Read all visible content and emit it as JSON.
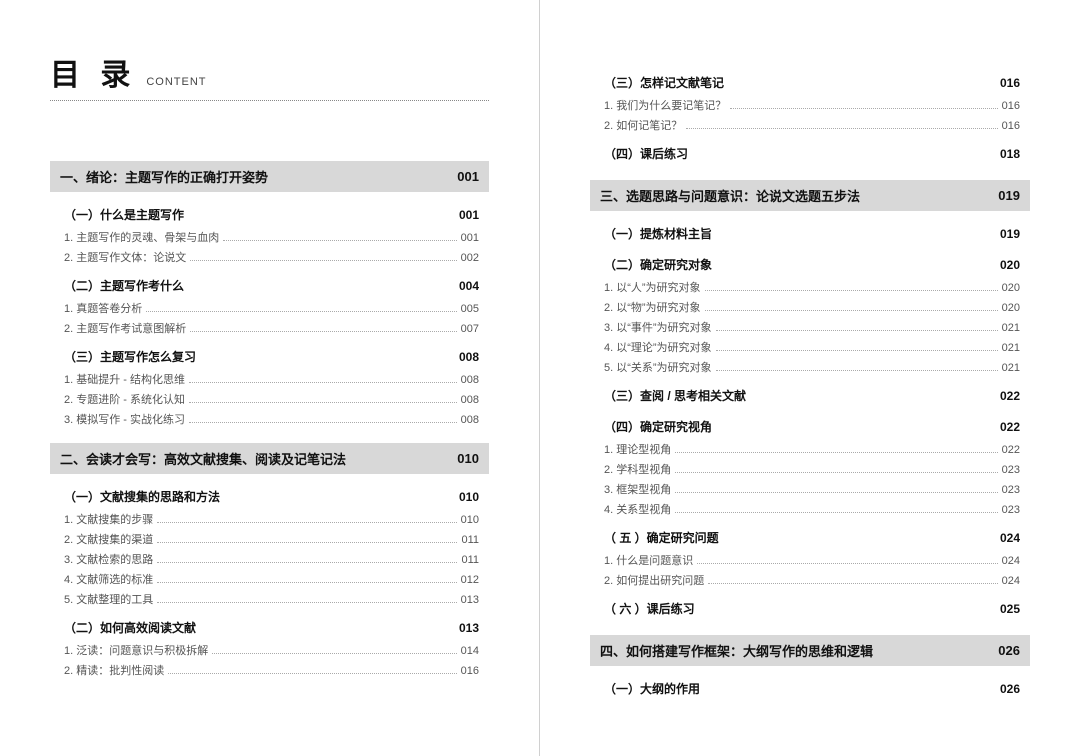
{
  "title": {
    "main": "目 录",
    "sub": "CONTENT"
  },
  "colors": {
    "chapter_bg": "#d8d8d8",
    "text_main": "#111111",
    "text_sub": "#555555",
    "dot": "#aaaaaa",
    "divider": "#d0d0d0"
  },
  "left": [
    {
      "type": "chapter",
      "label": "一、绪论：主题写作的正确打开姿势",
      "page": "001"
    },
    {
      "type": "section",
      "label": "（一）什么是主题写作",
      "page": "001"
    },
    {
      "type": "item",
      "label": "1. 主题写作的灵魂、骨架与血肉",
      "page": "001"
    },
    {
      "type": "item",
      "label": "2. 主题写作文体：论说文",
      "page": "002"
    },
    {
      "type": "section",
      "label": "（二）主题写作考什么",
      "page": "004"
    },
    {
      "type": "item",
      "label": "1. 真题答卷分析",
      "page": "005"
    },
    {
      "type": "item",
      "label": "2. 主题写作考试意图解析",
      "page": "007"
    },
    {
      "type": "section",
      "label": "（三）主题写作怎么复习",
      "page": "008"
    },
    {
      "type": "item",
      "label": "1. 基础提升 - 结构化思维",
      "page": "008"
    },
    {
      "type": "item",
      "label": "2. 专题进阶 - 系统化认知",
      "page": "008"
    },
    {
      "type": "item",
      "label": "3. 模拟写作 - 实战化练习",
      "page": "008"
    },
    {
      "type": "chapter",
      "label": "二、会读才会写：高效文献搜集、阅读及记笔记法",
      "page": "010"
    },
    {
      "type": "section",
      "label": "（一）文献搜集的思路和方法",
      "page": "010"
    },
    {
      "type": "item",
      "label": "1. 文献搜集的步骤",
      "page": "010"
    },
    {
      "type": "item",
      "label": "2. 文献搜集的渠道",
      "page": "011"
    },
    {
      "type": "item",
      "label": "3. 文献检索的思路",
      "page": "011"
    },
    {
      "type": "item",
      "label": "4. 文献筛选的标准",
      "page": "012"
    },
    {
      "type": "item",
      "label": "5. 文献整理的工具",
      "page": "013"
    },
    {
      "type": "section",
      "label": "（二）如何高效阅读文献",
      "page": "013"
    },
    {
      "type": "item",
      "label": "1. 泛读：问题意识与积极拆解",
      "page": "014"
    },
    {
      "type": "item",
      "label": "2. 精读：批判性阅读",
      "page": "016"
    }
  ],
  "right": [
    {
      "type": "section",
      "label": "（三）怎样记文献笔记",
      "page": "016"
    },
    {
      "type": "item",
      "label": "1. 我们为什么要记笔记？",
      "page": "016"
    },
    {
      "type": "item",
      "label": "2. 如何记笔记？",
      "page": "016"
    },
    {
      "type": "section",
      "label": "（四）课后练习",
      "page": "018"
    },
    {
      "type": "chapter",
      "label": "三、选题思路与问题意识：论说文选题五步法",
      "page": "019"
    },
    {
      "type": "section",
      "label": "（一）提炼材料主旨",
      "page": "019"
    },
    {
      "type": "section",
      "label": "（二）确定研究对象",
      "page": "020"
    },
    {
      "type": "item",
      "label": "1. 以“人”为研究对象",
      "page": "020"
    },
    {
      "type": "item",
      "label": "2. 以“物”为研究对象",
      "page": "020"
    },
    {
      "type": "item",
      "label": "3. 以“事件”为研究对象",
      "page": "021"
    },
    {
      "type": "item",
      "label": "4. 以“理论”为研究对象",
      "page": "021"
    },
    {
      "type": "item",
      "label": "5. 以“关系”为研究对象",
      "page": "021"
    },
    {
      "type": "section",
      "label": "（三）查阅 / 思考相关文献",
      "page": "022"
    },
    {
      "type": "section",
      "label": "（四）确定研究视角",
      "page": "022"
    },
    {
      "type": "item",
      "label": "1. 理论型视角",
      "page": "022"
    },
    {
      "type": "item",
      "label": "2. 学科型视角",
      "page": "023"
    },
    {
      "type": "item",
      "label": "3. 框架型视角",
      "page": "023"
    },
    {
      "type": "item",
      "label": "4. 关系型视角",
      "page": "023"
    },
    {
      "type": "section",
      "label": "（ 五 ）确定研究问题",
      "page": "024"
    },
    {
      "type": "item",
      "label": "1. 什么是问题意识",
      "page": "024"
    },
    {
      "type": "item",
      "label": "2. 如何提出研究问题",
      "page": "024"
    },
    {
      "type": "section",
      "label": "（ 六 ）课后练习",
      "page": "025"
    },
    {
      "type": "chapter",
      "label": "四、如何搭建写作框架：大纲写作的思维和逻辑",
      "page": "026"
    },
    {
      "type": "section",
      "label": "（一）大纲的作用",
      "page": "026"
    }
  ]
}
